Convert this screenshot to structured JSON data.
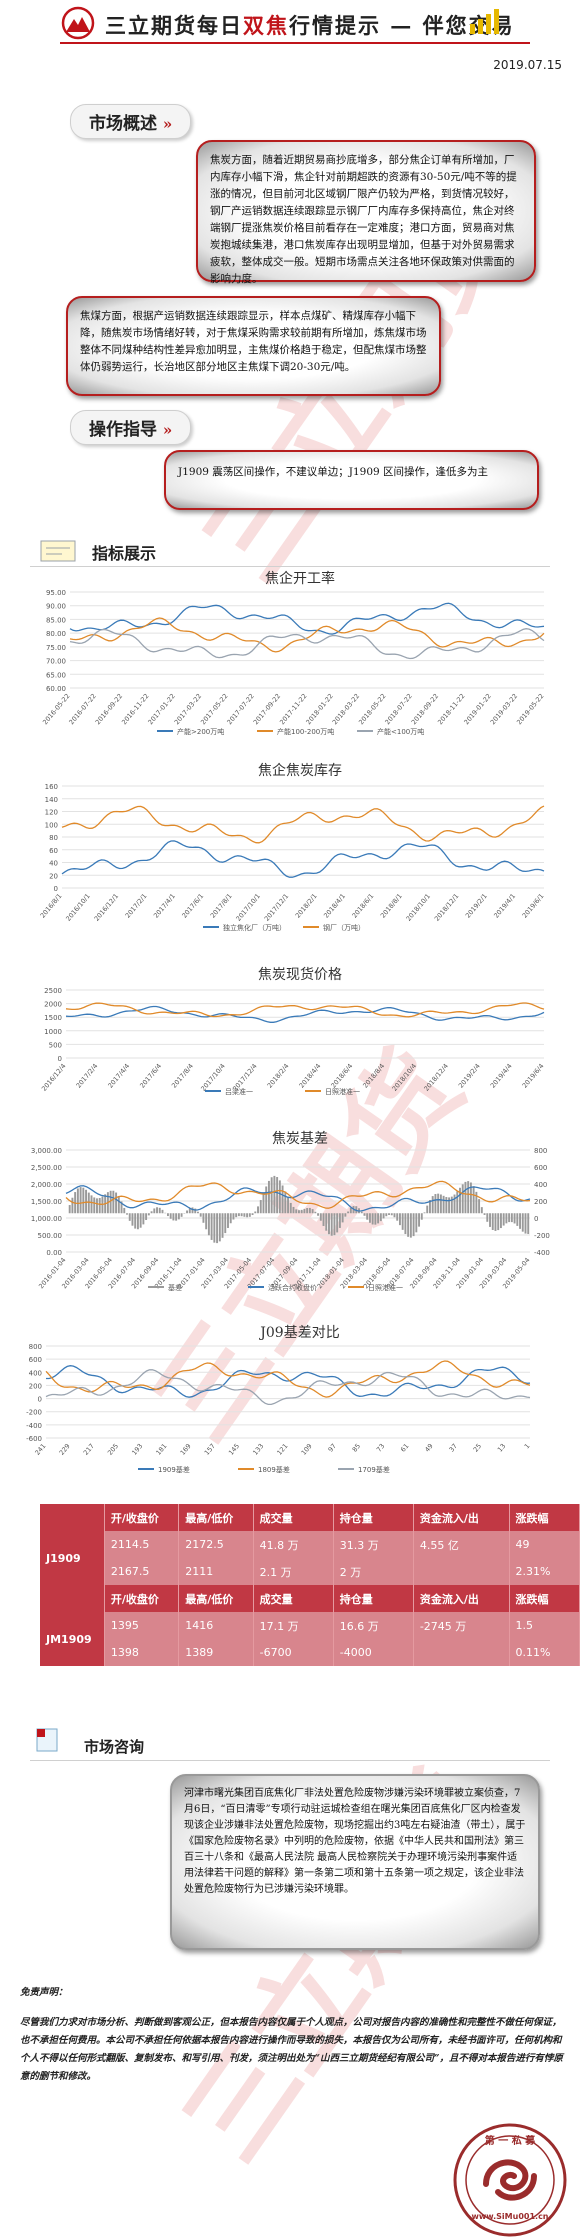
{
  "header": {
    "title_a": "三立期货每日",
    "title_red": "双焦",
    "title_b": "行情提示 — 伴您交易",
    "date": "2019.07.15"
  },
  "market_overview": {
    "heading": "市场概述",
    "coke_text": "焦炭方面，随着近期贸易商抄底增多，部分焦企订单有所增加，厂内库存小幅下滑，焦企针对前期超跌的资源有30-50元/吨不等的提涨的情况，但目前河北区域钢厂限产仍较为严格，到货情况较好，钢厂产运销数据连续跟踪显示钢厂厂内库存多保持高位，焦企对终端钢厂提涨焦炭价格目前看存在一定难度；港口方面，贸易商对焦炭抱城续集港，港口焦炭库存出现明显增加，但基于对外贸易需求疲软，整体成交一般。短期市场需点关注各地环保政策对供需面的影响力度。",
    "coal_text": "焦煤方面，根据产运销数据连续跟踪显示，样本点煤矿、精煤库存小幅下降，随焦炭市场情绪好转，对于焦煤采购需求较前期有所增加，炼焦煤市场整体不同煤种结构性差异愈加明显，主焦煤价格趋于稳定，但配焦煤市场整体仍弱势运行，长治地区部分地区主焦煤下调20-30元/吨。"
  },
  "operation": {
    "heading": "操作指导",
    "text": "J1909 震荡区间操作，不建议单边；J1909 区间操作，逢低多为主"
  },
  "indicators": {
    "heading": "指标展示",
    "charts": [
      {
        "title": "焦企开工率",
        "y_ticks": [
          "95.00",
          "90.00",
          "85.00",
          "80.00",
          "75.00",
          "70.00",
          "65.00",
          "60.00"
        ],
        "x_ticks": [
          "2016-05-22",
          "2016-07-22",
          "2016-09-22",
          "2016-11-22",
          "2017-01-22",
          "2017-03-22",
          "2017-05-22",
          "2017-07-22",
          "2017-09-22",
          "2017-11-22",
          "2018-01-22",
          "2018-03-22",
          "2018-05-22",
          "2018-07-22",
          "2018-09-22",
          "2018-11-22",
          "2019-01-22",
          "2019-03-22",
          "2019-05-22"
        ],
        "legend": [
          "产能>200万吨",
          "产能100-200万吨",
          "产能<100万吨"
        ],
        "colors": [
          "#3a7ab8",
          "#e08a2a",
          "#9aa4b0"
        ]
      },
      {
        "title": "焦企焦炭库存",
        "y_ticks": [
          "160",
          "140",
          "120",
          "100",
          "80",
          "60",
          "40",
          "20",
          "0"
        ],
        "x_ticks": [
          "2016/8/1",
          "2016/10/1",
          "2016/12/1",
          "2017/2/1",
          "2017/4/1",
          "2017/6/1",
          "2017/8/1",
          "2017/10/1",
          "2017/12/1",
          "2018/2/1",
          "2018/4/1",
          "2018/6/1",
          "2018/8/1",
          "2018/10/1",
          "2018/12/1",
          "2019/2/1",
          "2019/4/1",
          "2019/6/1"
        ],
        "legend": [
          "独立焦化厂（万吨）",
          "钢厂（万吨）"
        ],
        "colors": [
          "#3a7ab8",
          "#e08a2a"
        ]
      },
      {
        "title": "焦炭现货价格",
        "y_ticks": [
          "2500",
          "2000",
          "1500",
          "1000",
          "500",
          "0"
        ],
        "x_ticks": [
          "2016/12/4",
          "2017/2/4",
          "2017/4/4",
          "2017/6/4",
          "2017/8/4",
          "2017/10/4",
          "2017/12/4",
          "2018/2/4",
          "2018/4/4",
          "2018/6/4",
          "2018/8/4",
          "2018/10/4",
          "2018/12/4",
          "2019/2/4",
          "2019/4/4",
          "2019/6/4"
        ],
        "legend": [
          "吕梁准一",
          "日照港准一"
        ],
        "colors": [
          "#3a7ab8",
          "#e08a2a"
        ]
      },
      {
        "title": "焦炭基差",
        "y_ticks": [
          "3,000.00",
          "2,500.00",
          "2,000.00",
          "1,500.00",
          "1,000.00",
          "500.00",
          "0.00"
        ],
        "y2_ticks": [
          "800",
          "600",
          "400",
          "200",
          "0",
          "-200",
          "-400"
        ],
        "x_ticks": [
          "2016-01-04",
          "2016-03-04",
          "2016-05-04",
          "2016-07-04",
          "2016-09-04",
          "2016-11-04",
          "2017-01-04",
          "2017-03-04",
          "2017-05-04",
          "2017-07-04",
          "2017-09-04",
          "2017-11-04",
          "2018-01-04",
          "2018-03-04",
          "2018-05-04",
          "2018-07-04",
          "2018-09-04",
          "2018-11-04",
          "2019-01-04",
          "2019-03-04",
          "2019-05-04"
        ],
        "legend": [
          "基差",
          "活跃合约收盘价",
          "日照港准一"
        ],
        "colors": [
          "#9a9a9a",
          "#3a7ab8",
          "#e08a2a"
        ]
      },
      {
        "title": "J09基差对比",
        "y_ticks": [
          "800",
          "600",
          "400",
          "200",
          "0",
          "-200",
          "-400",
          "-600"
        ],
        "x_ticks": [
          "241",
          "229",
          "217",
          "205",
          "193",
          "181",
          "169",
          "157",
          "145",
          "133",
          "121",
          "109",
          "97",
          "85",
          "73",
          "61",
          "49",
          "37",
          "25",
          "13",
          "1"
        ],
        "legend": [
          "1909基差",
          "1809基差",
          "1709基差"
        ],
        "colors": [
          "#3a7ab8",
          "#e08a2a",
          "#9aa4b0"
        ]
      }
    ]
  },
  "table": {
    "headers": [
      "开/收盘价",
      "最高/低价",
      "成交量",
      "持仓量",
      "资金流入/出",
      "涨跌幅"
    ],
    "rows": [
      {
        "label": "J1909",
        "r1": [
          "2114.5",
          "2172.5",
          "41.8 万",
          "31.3 万",
          "4.55 亿",
          "49"
        ],
        "r2": [
          "2167.5",
          "2111",
          "2.1 万",
          "2 万",
          "",
          "2.31%"
        ]
      },
      {
        "label": "JM1909",
        "r1": [
          "1395",
          "1416",
          "17.1 万",
          "16.6 万",
          "-2745 万",
          "1.5"
        ],
        "r2": [
          "1398",
          "1389",
          "-6700",
          "-4000",
          "",
          "0.11%"
        ]
      }
    ]
  },
  "consult": {
    "heading": "市场咨询",
    "text": "河津市曙光集团百底焦化厂非法处置危险废物涉嫌污染环境罪被立案侦查，7月6日，“百日清零”专项行动驻运城检查组在曙光集团百底焦化厂区内检查发现该企业涉嫌非法处置危险废物，现场挖掘出约3吨左右疑油渣（带土），属于《国家危险废物名录》中列明的危险废物，依据《中华人民共和国刑法》第三百三十八条和《最高人民法院 最高人民检察院关于办理环境污染刑事案件适用法律若干问题的解释》第一条第二项和第十五条第一项之规定，该企业非法处置危险废物行为已涉嫌污染环境罪。"
  },
  "disclaimer": {
    "title": "免责声明：",
    "text": "尽管我们力求对市场分析、判断做到客观公正，但本报告内容仅属于个人观点，公司对报告内容的准确性和完整性不做任何保证，也不承担任何费用。本公司不承担任何依据本报告内容进行操作而导致的损失，本报告仅为公司所有，未经书面许可，任何机构和个人不得以任何形式翻版、复制发布、和写引用、刊发，须注明出处为“山西三立期货经纪有限公司”，且不得对本报告进行有悖原意的删节和修改。"
  },
  "watermark": {
    "text": "三立期货"
  },
  "seal": {
    "top": "第 一 私 募",
    "bottom": "www.SiMu001.cn"
  }
}
